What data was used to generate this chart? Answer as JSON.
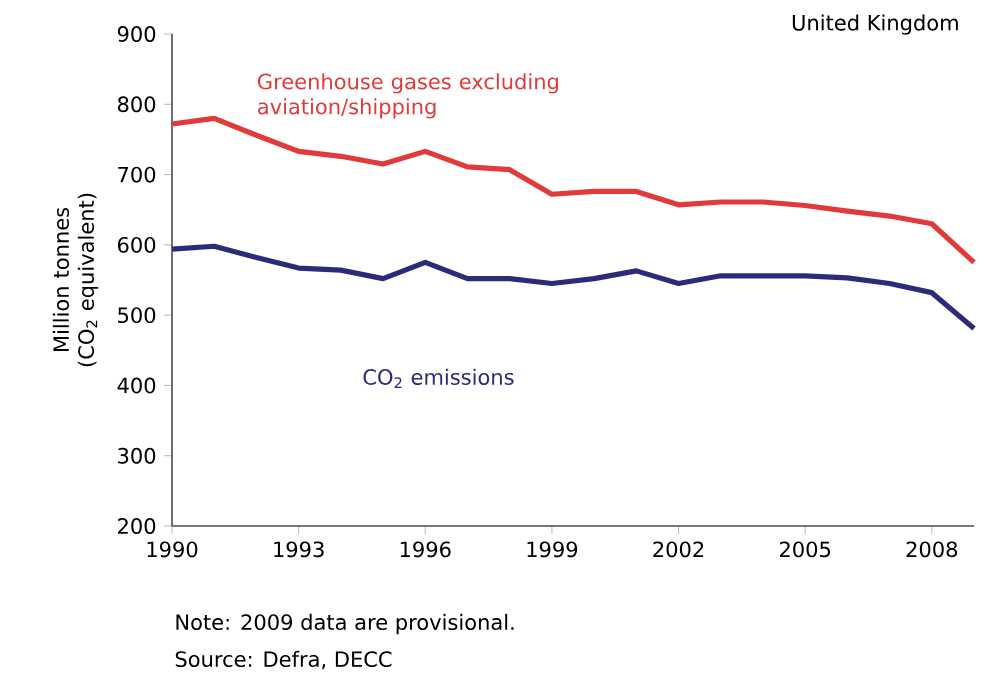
{
  "chart_data": {
    "type": "line",
    "xlabel": null,
    "ylabel": "Million tonnes (CO$_{2}$ equivalent)",
    "x": [
      1990,
      1991,
      1992,
      1993,
      1994,
      1995,
      1996,
      1997,
      1998,
      1999,
      2000,
      2001,
      2002,
      2003,
      2004,
      2005,
      2006,
      2007,
      2008,
      2009
    ],
    "series": [
      {
        "name": "Greenhouse gases excluding aviation/shipping",
        "color": "#e03a3a",
        "values": [
          772,
          780,
          756,
          733,
          726,
          715,
          733,
          711,
          707,
          672,
          676,
          676,
          657,
          661,
          661,
          656,
          648,
          641,
          630,
          575
        ]
      },
      {
        "name": "CO$_{2}$ emissions",
        "color": "#2e2a7a",
        "values": [
          594,
          598,
          582,
          567,
          564,
          552,
          575,
          552,
          552,
          545,
          552,
          563,
          545,
          556,
          556,
          556,
          553,
          545,
          532,
          481
        ]
      }
    ],
    "xlim": [
      1990,
      2009
    ],
    "ylim": [
      200,
      900
    ],
    "xticks": [
      1990,
      1993,
      1996,
      1999,
      2002,
      2005,
      2008
    ],
    "yticks": [
      200,
      300,
      400,
      500,
      600,
      700,
      800,
      900
    ],
    "grid": false,
    "legend": false,
    "marker": "none",
    "line_style": "solid",
    "annotations": [
      "United Kingdom",
      "Note:  2009 data are provisional.",
      "Source: Defra, DECC"
    ]
  }
}
